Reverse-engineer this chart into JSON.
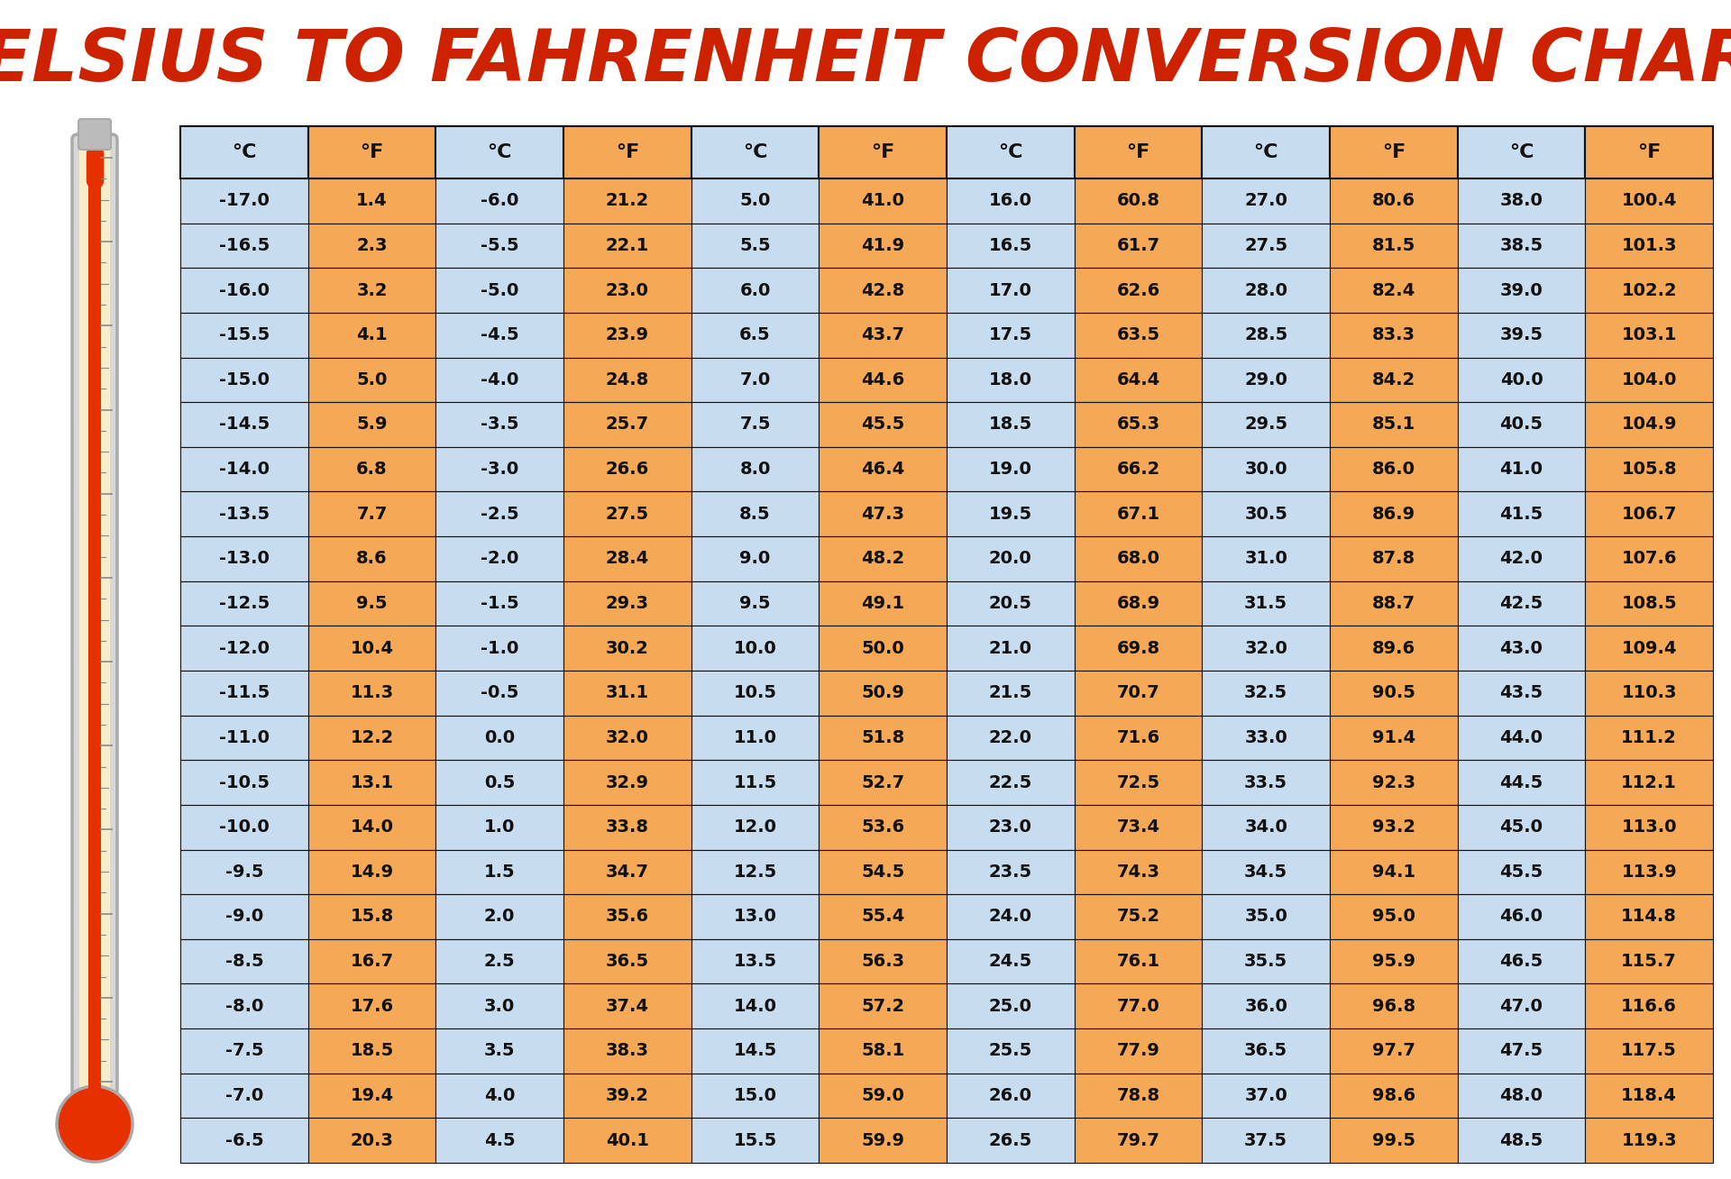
{
  "title": "CELSIUS TO FAHRENHEIT CONVERSION CHART",
  "title_color": "#CC2200",
  "title_fontsize": 58,
  "background_color": "#FFFFFF",
  "border_color": "#111111",
  "text_color": "#111111",
  "header_text_color": "#111111",
  "columns": [
    "°C",
    "°F",
    "°C",
    "°F",
    "°C",
    "°F",
    "°C",
    "°F",
    "°C",
    "°F",
    "°C",
    "°F"
  ],
  "rows": [
    [
      "-17.0",
      "1.4",
      "-6.0",
      "21.2",
      "5.0",
      "41.0",
      "16.0",
      "60.8",
      "27.0",
      "80.6",
      "38.0",
      "100.4"
    ],
    [
      "-16.5",
      "2.3",
      "-5.5",
      "22.1",
      "5.5",
      "41.9",
      "16.5",
      "61.7",
      "27.5",
      "81.5",
      "38.5",
      "101.3"
    ],
    [
      "-16.0",
      "3.2",
      "-5.0",
      "23.0",
      "6.0",
      "42.8",
      "17.0",
      "62.6",
      "28.0",
      "82.4",
      "39.0",
      "102.2"
    ],
    [
      "-15.5",
      "4.1",
      "-4.5",
      "23.9",
      "6.5",
      "43.7",
      "17.5",
      "63.5",
      "28.5",
      "83.3",
      "39.5",
      "103.1"
    ],
    [
      "-15.0",
      "5.0",
      "-4.0",
      "24.8",
      "7.0",
      "44.6",
      "18.0",
      "64.4",
      "29.0",
      "84.2",
      "40.0",
      "104.0"
    ],
    [
      "-14.5",
      "5.9",
      "-3.5",
      "25.7",
      "7.5",
      "45.5",
      "18.5",
      "65.3",
      "29.5",
      "85.1",
      "40.5",
      "104.9"
    ],
    [
      "-14.0",
      "6.8",
      "-3.0",
      "26.6",
      "8.0",
      "46.4",
      "19.0",
      "66.2",
      "30.0",
      "86.0",
      "41.0",
      "105.8"
    ],
    [
      "-13.5",
      "7.7",
      "-2.5",
      "27.5",
      "8.5",
      "47.3",
      "19.5",
      "67.1",
      "30.5",
      "86.9",
      "41.5",
      "106.7"
    ],
    [
      "-13.0",
      "8.6",
      "-2.0",
      "28.4",
      "9.0",
      "48.2",
      "20.0",
      "68.0",
      "31.0",
      "87.8",
      "42.0",
      "107.6"
    ],
    [
      "-12.5",
      "9.5",
      "-1.5",
      "29.3",
      "9.5",
      "49.1",
      "20.5",
      "68.9",
      "31.5",
      "88.7",
      "42.5",
      "108.5"
    ],
    [
      "-12.0",
      "10.4",
      "-1.0",
      "30.2",
      "10.0",
      "50.0",
      "21.0",
      "69.8",
      "32.0",
      "89.6",
      "43.0",
      "109.4"
    ],
    [
      "-11.5",
      "11.3",
      "-0.5",
      "31.1",
      "10.5",
      "50.9",
      "21.5",
      "70.7",
      "32.5",
      "90.5",
      "43.5",
      "110.3"
    ],
    [
      "-11.0",
      "12.2",
      "0.0",
      "32.0",
      "11.0",
      "51.8",
      "22.0",
      "71.6",
      "33.0",
      "91.4",
      "44.0",
      "111.2"
    ],
    [
      "-10.5",
      "13.1",
      "0.5",
      "32.9",
      "11.5",
      "52.7",
      "22.5",
      "72.5",
      "33.5",
      "92.3",
      "44.5",
      "112.1"
    ],
    [
      "-10.0",
      "14.0",
      "1.0",
      "33.8",
      "12.0",
      "53.6",
      "23.0",
      "73.4",
      "34.0",
      "93.2",
      "45.0",
      "113.0"
    ],
    [
      "-9.5",
      "14.9",
      "1.5",
      "34.7",
      "12.5",
      "54.5",
      "23.5",
      "74.3",
      "34.5",
      "94.1",
      "45.5",
      "113.9"
    ],
    [
      "-9.0",
      "15.8",
      "2.0",
      "35.6",
      "13.0",
      "55.4",
      "24.0",
      "75.2",
      "35.0",
      "95.0",
      "46.0",
      "114.8"
    ],
    [
      "-8.5",
      "16.7",
      "2.5",
      "36.5",
      "13.5",
      "56.3",
      "24.5",
      "76.1",
      "35.5",
      "95.9",
      "46.5",
      "115.7"
    ],
    [
      "-8.0",
      "17.6",
      "3.0",
      "37.4",
      "14.0",
      "57.2",
      "25.0",
      "77.0",
      "36.0",
      "96.8",
      "47.0",
      "116.6"
    ],
    [
      "-7.5",
      "18.5",
      "3.5",
      "38.3",
      "14.5",
      "58.1",
      "25.5",
      "77.9",
      "36.5",
      "97.7",
      "47.5",
      "117.5"
    ],
    [
      "-7.0",
      "19.4",
      "4.0",
      "39.2",
      "15.0",
      "59.0",
      "26.0",
      "78.8",
      "37.0",
      "98.6",
      "48.0",
      "118.4"
    ],
    [
      "-6.5",
      "20.3",
      "4.5",
      "40.1",
      "15.5",
      "59.9",
      "26.5",
      "79.7",
      "37.5",
      "99.5",
      "48.5",
      "119.3"
    ]
  ],
  "col_colors": [
    "#C8DCF0",
    "#F5A855",
    "#C8DCF0",
    "#F5A855",
    "#C8DCF0",
    "#F5A855",
    "#C8DCF0",
    "#F5A855",
    "#C8DCF0",
    "#F5A855",
    "#C8DCF0",
    "#F5A855"
  ],
  "header_colors": [
    "#C8DCF0",
    "#F5A855",
    "#C8DCF0",
    "#F5A855",
    "#C8DCF0",
    "#F5A855",
    "#C8DCF0",
    "#F5A855",
    "#C8DCF0",
    "#F5A855",
    "#C8DCF0",
    "#F5A855"
  ]
}
